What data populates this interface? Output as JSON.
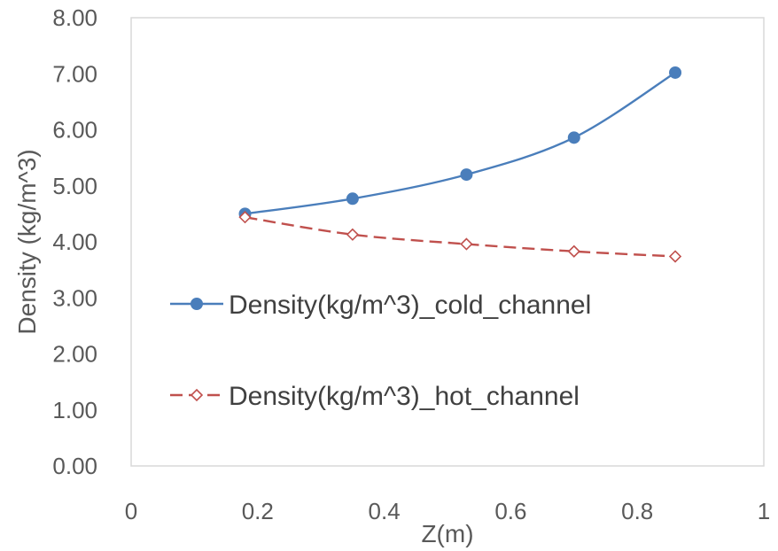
{
  "chart_data": {
    "type": "line",
    "xlabel": "Z(m)",
    "ylabel": "Density (kg/m^3)",
    "xlim": [
      0,
      1
    ],
    "ylim": [
      0,
      8
    ],
    "x_ticks": [
      "0",
      "0.2",
      "0.4",
      "0.6",
      "0.8",
      "1"
    ],
    "y_ticks": [
      "0.00",
      "1.00",
      "2.00",
      "3.00",
      "4.00",
      "5.00",
      "6.00",
      "7.00",
      "8.00"
    ],
    "grid": false,
    "legend_position": "inside-left",
    "series": [
      {
        "name": "Density(kg/m^3)_cold_channel",
        "color": "#4A7EBB",
        "line_style": "solid",
        "marker": "filled-circle",
        "x": [
          0.18,
          0.35,
          0.53,
          0.7,
          0.86
        ],
        "y": [
          4.5,
          4.77,
          5.2,
          5.86,
          7.02
        ]
      },
      {
        "name": "Density(kg/m^3)_hot_channel",
        "color": "#C0504D",
        "line_style": "dashed",
        "marker": "hollow-diamond",
        "x": [
          0.18,
          0.35,
          0.53,
          0.7,
          0.86
        ],
        "y": [
          4.44,
          4.13,
          3.96,
          3.83,
          3.74
        ]
      }
    ]
  }
}
